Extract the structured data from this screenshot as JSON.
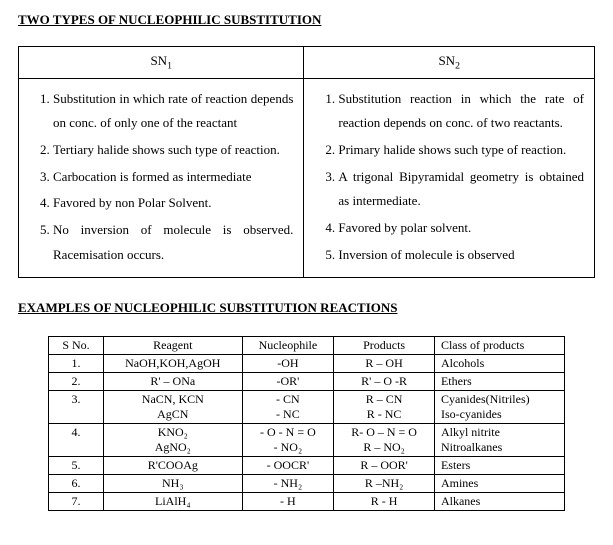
{
  "title_main": "TWO TYPES OF NUCLEOPHILIC SUBSTITUTION",
  "title_examples": "EXAMPLES OF NUCLEOPHILIC SUBSTITUTION REACTIONS",
  "comparison": {
    "header_left": "SN",
    "header_left_sub": "1",
    "header_right": "SN",
    "header_right_sub": "2",
    "sn1": [
      "Substitution in which rate of reaction depends on conc. of only one of the reactant",
      "Tertiary halide shows such type of reaction.",
      "Carbocation is formed as intermediate",
      "Favored by non Polar Solvent.",
      "No inversion of molecule is observed. Racemisation occurs."
    ],
    "sn2": [
      "Substitution reaction in which the rate of reaction depends on conc. of two reactants.",
      "Primary halide shows such type of reaction.",
      "A trigonal Bipyramidal geometry is obtained as intermediate.",
      "Favored by polar solvent.",
      "Inversion of molecule is observed"
    ]
  },
  "examples": {
    "headers": {
      "sno": "S No.",
      "reagent": "Reagent",
      "nucleophile": "Nucleophile",
      "products": "Products",
      "class": "Class of products"
    },
    "rows": [
      {
        "sno": "1.",
        "reagent": "NaOH,KOH,AgOH",
        "nucleophile": "-OH",
        "products": "R – OH",
        "class": "Alcohols"
      },
      {
        "sno": "2.",
        "reagent": "R' – ONa",
        "nucleophile": "-OR'",
        "products": "R' – O -R",
        "class": "Ethers"
      },
      {
        "sno": "3.",
        "reagent": "NaCN, KCN\nAgCN",
        "nucleophile": "- CN\n- NC",
        "products": "R – CN\nR - NC",
        "class": "Cyanides(Nitriles)\nIso-cyanides"
      },
      {
        "sno": "4.",
        "reagent": "KNO₂\nAgNO₂",
        "nucleophile": "- O - N = O\n- NO₂",
        "products": "R- O – N = O\nR – NO₂",
        "class": "Alkyl nitrite\nNitroalkanes"
      },
      {
        "sno": "5.",
        "reagent": "R'COOAg",
        "nucleophile": "- OOCR'",
        "products": "R – OOR'",
        "class": "Esters"
      },
      {
        "sno": "6.",
        "reagent": "NH₃",
        "nucleophile": "- NH₂",
        "products": "R –NH₂",
        "class": "Amines"
      },
      {
        "sno": "7.",
        "reagent": "LiAlH₄",
        "nucleophile": "- H",
        "products": "R - H",
        "class": "Alkanes"
      }
    ]
  }
}
